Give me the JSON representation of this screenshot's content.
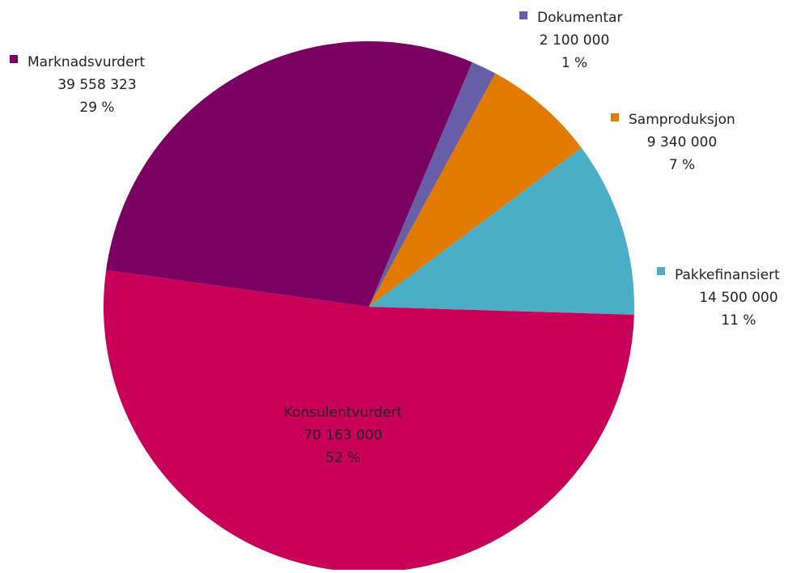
{
  "chart_data": {
    "type": "pie",
    "categories": [
      "Dokumentar",
      "Samproduksjon",
      "Pakkefinansiert",
      "Konsulentvurdert",
      "Marknadsvurdert"
    ],
    "values": [
      2100000,
      9340000,
      14500000,
      70163000,
      39558323
    ],
    "value_labels": [
      "2 100 000",
      "9 340 000",
      "14 500 000",
      "70 163 000",
      "39 558 323"
    ],
    "shares": [
      1,
      7,
      11,
      52,
      29
    ],
    "share_labels": [
      "1 %",
      "7 %",
      "11 %",
      "52 %",
      "29 %"
    ],
    "colors": [
      "#675ea8",
      "#e07b00",
      "#4aaec6",
      "#c8005a",
      "#7a0062"
    ]
  }
}
